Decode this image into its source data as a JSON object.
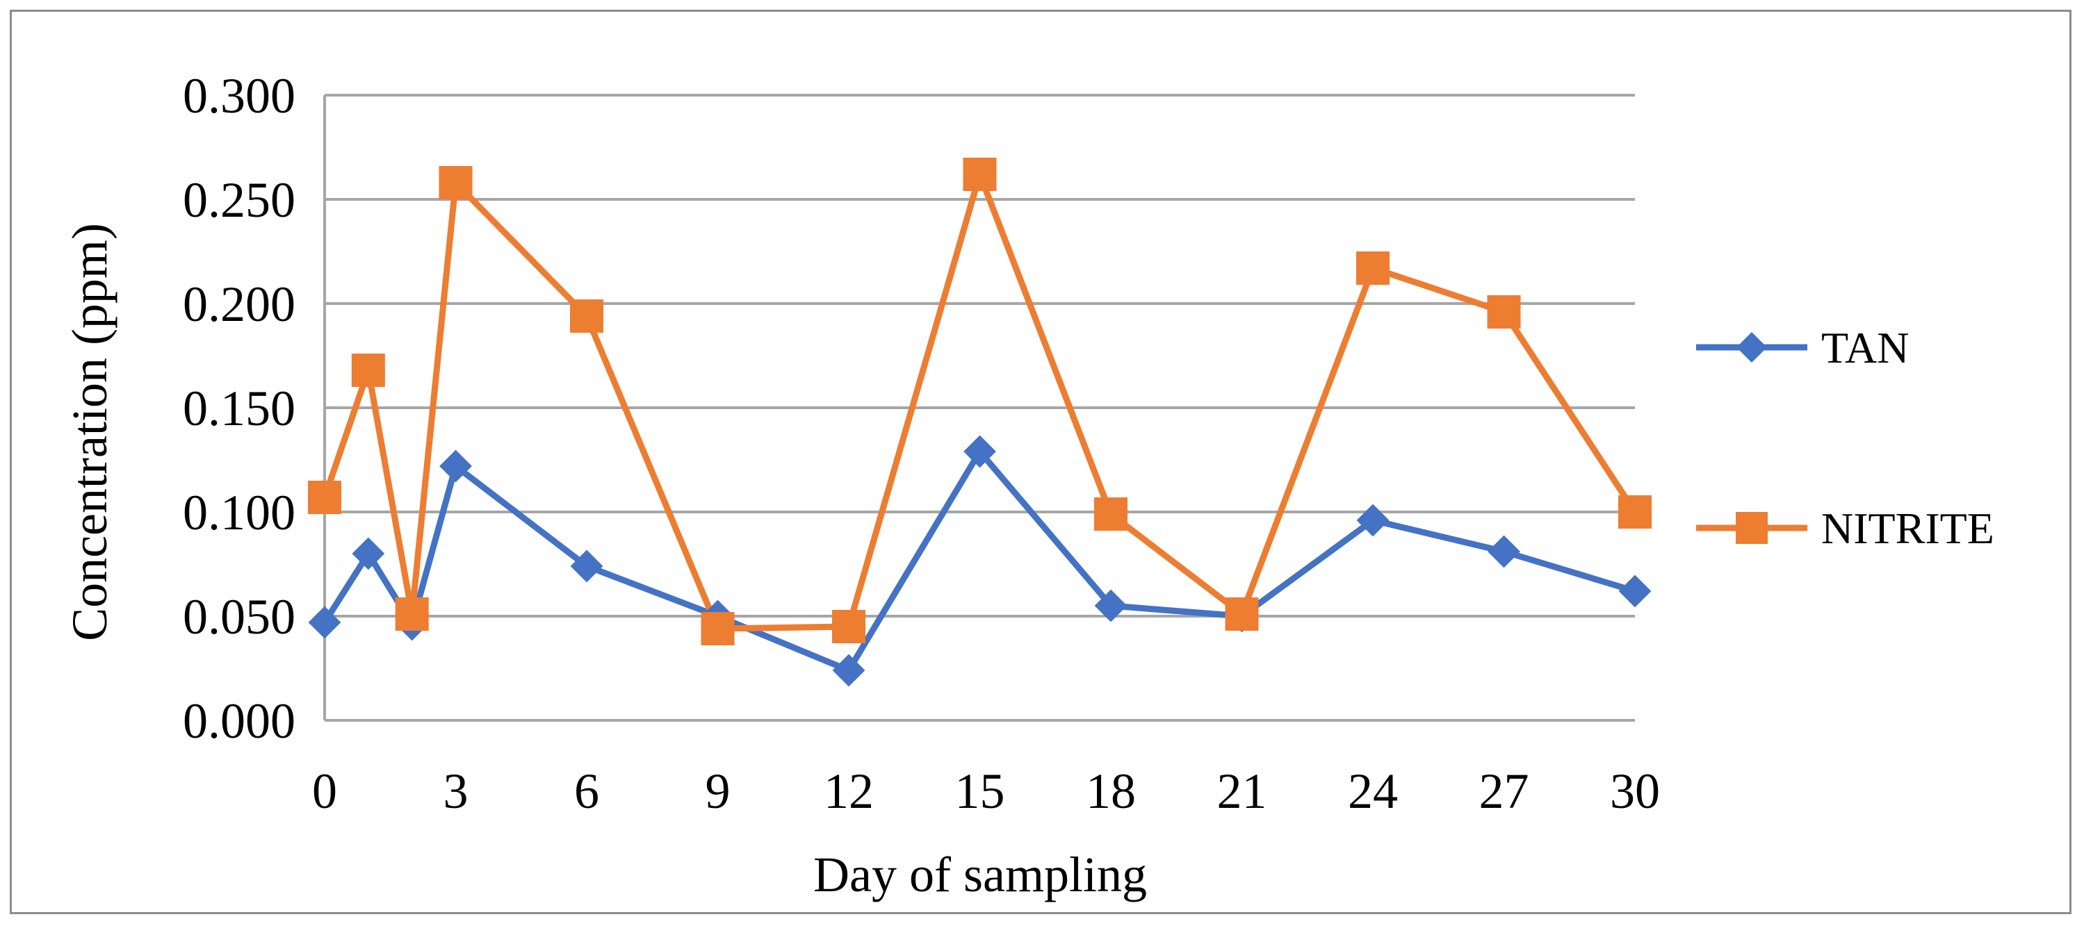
{
  "chart_data": {
    "type": "line",
    "title": "",
    "xlabel": "Day of sampling",
    "ylabel": "Concentration (ppm)",
    "ylim": [
      0,
      0.3
    ],
    "yticks": [
      0,
      0.05,
      0.1,
      0.15,
      0.2,
      0.25,
      0.3
    ],
    "ytick_labels": [
      "0.000",
      "0.050",
      "0.100",
      "0.150",
      "0.200",
      "0.250",
      "0.300"
    ],
    "x": [
      0,
      1,
      2,
      3,
      6,
      9,
      12,
      15,
      18,
      21,
      24,
      27,
      30
    ],
    "categories": [
      "0",
      "",
      "",
      "3",
      "6",
      "9",
      "12",
      "15",
      "18",
      "21",
      "24",
      "27",
      "30"
    ],
    "grid": true,
    "legend_position": "right",
    "series": [
      {
        "name": "TAN",
        "color": "#4472C4",
        "marker": "diamond",
        "values": [
          0.047,
          0.08,
          0.046,
          0.122,
          0.074,
          0.05,
          0.024,
          0.129,
          0.055,
          0.05,
          0.096,
          0.081,
          0.062
        ]
      },
      {
        "name": "NITRITE",
        "color": "#ED7D31",
        "marker": "square",
        "values": [
          0.107,
          0.168,
          0.051,
          0.258,
          0.194,
          0.044,
          0.045,
          0.262,
          0.099,
          0.051,
          0.217,
          0.196,
          0.1
        ]
      }
    ]
  }
}
